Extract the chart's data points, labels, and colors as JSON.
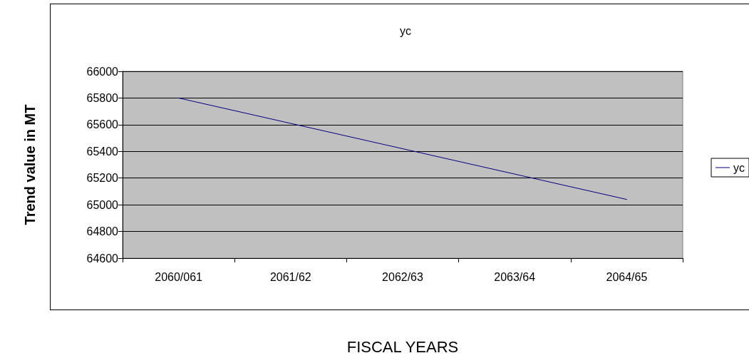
{
  "chart_data": {
    "type": "line",
    "title": "yc",
    "xlabel": "FISCAL YEARS",
    "ylabel": "Trend value in MT",
    "categories": [
      "2060/061",
      "2061/62",
      "2062/63",
      "2063/64",
      "2064/65"
    ],
    "series": [
      {
        "name": "yc",
        "color": "#000080",
        "values": [
          65800,
          65610,
          65420,
          65230,
          65040
        ]
      }
    ],
    "ylim": [
      64600,
      66000
    ],
    "yticks": [
      64600,
      64800,
      65000,
      65200,
      65400,
      65600,
      65800,
      66000
    ],
    "grid": "y",
    "legend": "right",
    "marker": "none",
    "line_style": "solid"
  }
}
